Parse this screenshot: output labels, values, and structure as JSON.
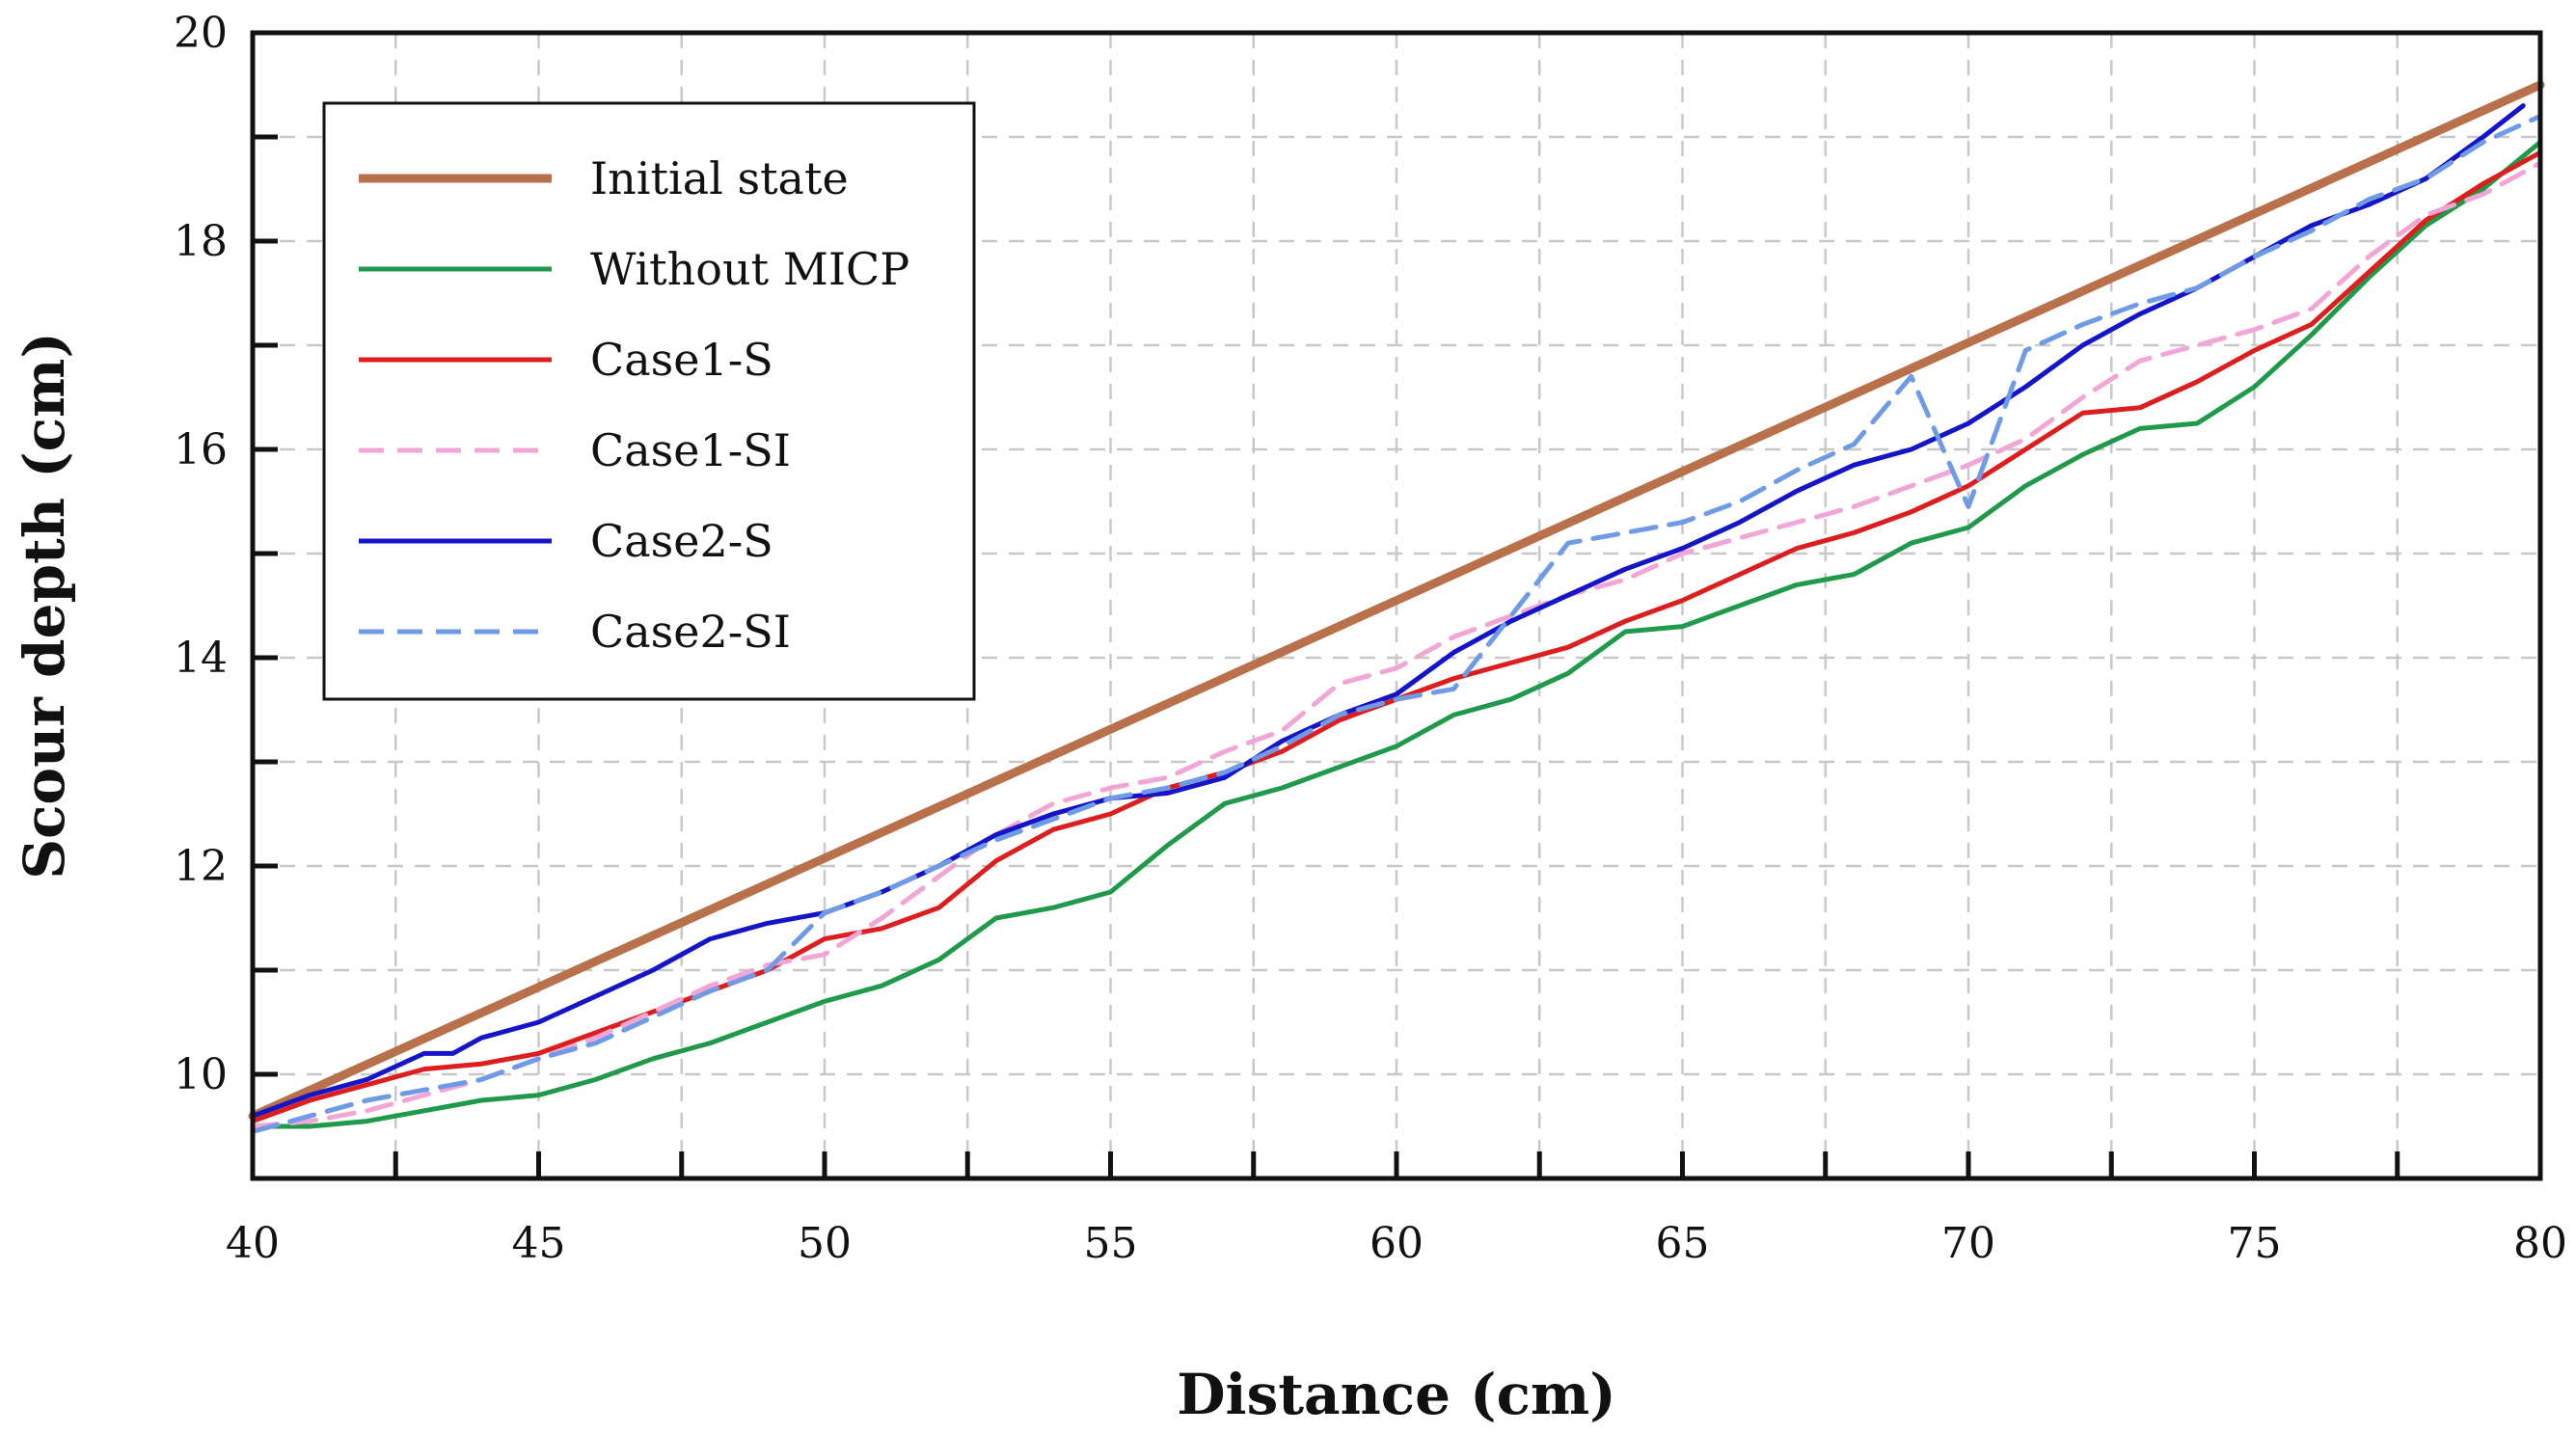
{
  "chart_data": {
    "type": "line",
    "xlabel": "Distance (cm)",
    "ylabel": "Scour depth (cm)",
    "xlim": [
      40,
      80
    ],
    "ylim": [
      9,
      20
    ],
    "xticks": [
      40,
      45,
      50,
      55,
      60,
      65,
      70,
      75,
      80
    ],
    "yticks": [
      10,
      12,
      14,
      16,
      18,
      20
    ],
    "grid": true,
    "legend_position": "top-left",
    "series": [
      {
        "name": "Initial state",
        "color": "#b8714a",
        "style": "solid",
        "x": [
          40,
          80
        ],
        "y": [
          9.6,
          19.5
        ]
      },
      {
        "name": "Without MICP",
        "color": "#1f9a4a",
        "style": "solid",
        "x": [
          40,
          41,
          42,
          43,
          44,
          45,
          46,
          47,
          48,
          49,
          50,
          51,
          52,
          53,
          54,
          55,
          56,
          57,
          58,
          59,
          60,
          61,
          62,
          63,
          64,
          65,
          66,
          67,
          68,
          69,
          70,
          71,
          72,
          73,
          74,
          75,
          76,
          77,
          78,
          79,
          80
        ],
        "y": [
          9.5,
          9.5,
          9.55,
          9.65,
          9.75,
          9.8,
          9.95,
          10.15,
          10.3,
          10.5,
          10.7,
          10.85,
          11.1,
          11.5,
          11.6,
          11.75,
          12.2,
          12.6,
          12.75,
          12.95,
          13.15,
          13.45,
          13.6,
          13.85,
          14.25,
          14.3,
          14.5,
          14.7,
          14.8,
          15.1,
          15.25,
          15.65,
          15.95,
          16.2,
          16.25,
          16.6,
          17.1,
          17.65,
          18.15,
          18.5,
          18.95
        ]
      },
      {
        "name": "Case1-S",
        "color": "#dc1e1e",
        "style": "solid",
        "x": [
          40,
          41,
          42,
          43,
          44,
          45,
          46,
          47,
          48,
          49,
          50,
          51,
          52,
          53,
          54,
          55,
          56,
          57,
          58,
          59,
          60,
          61,
          62,
          63,
          64,
          65,
          66,
          67,
          68,
          69,
          70,
          71,
          72,
          73,
          74,
          75,
          76,
          77,
          78,
          79,
          80
        ],
        "y": [
          9.55,
          9.75,
          9.9,
          10.05,
          10.1,
          10.2,
          10.4,
          10.6,
          10.8,
          11.0,
          11.3,
          11.4,
          11.6,
          12.05,
          12.35,
          12.5,
          12.75,
          12.9,
          13.1,
          13.4,
          13.6,
          13.8,
          13.95,
          14.1,
          14.35,
          14.55,
          14.8,
          15.05,
          15.2,
          15.4,
          15.65,
          16.0,
          16.35,
          16.4,
          16.65,
          16.95,
          17.2,
          17.7,
          18.2,
          18.55,
          18.85
        ]
      },
      {
        "name": "Case1-SI",
        "color": "#f2a6d6",
        "style": "dashed",
        "x": [
          40,
          41,
          42,
          43,
          44,
          45,
          46,
          47,
          48,
          49,
          50,
          51,
          52,
          53,
          54,
          55,
          56,
          57,
          58,
          59,
          60,
          61,
          62,
          63,
          64,
          65,
          66,
          67,
          68,
          69,
          70,
          71,
          72,
          73,
          74,
          75,
          76,
          77,
          78,
          79,
          80
        ],
        "y": [
          9.5,
          9.55,
          9.65,
          9.8,
          9.95,
          10.15,
          10.35,
          10.6,
          10.85,
          11.05,
          11.15,
          11.5,
          11.9,
          12.3,
          12.6,
          12.75,
          12.85,
          13.1,
          13.3,
          13.75,
          13.9,
          14.2,
          14.4,
          14.6,
          14.75,
          15.0,
          15.15,
          15.3,
          15.45,
          15.65,
          15.85,
          16.1,
          16.5,
          16.85,
          17.0,
          17.15,
          17.35,
          17.85,
          18.25,
          18.45,
          18.75
        ]
      },
      {
        "name": "Case2-S",
        "color": "#1414c8",
        "style": "solid",
        "x": [
          40,
          41,
          42,
          43,
          43.5,
          44,
          45,
          46,
          47,
          48,
          49,
          50,
          51,
          52,
          53,
          54,
          55,
          56,
          57,
          58,
          59,
          60,
          61,
          62,
          63,
          64,
          65,
          66,
          67,
          68,
          69,
          70,
          71,
          72,
          73,
          74,
          75,
          76,
          77,
          78,
          79,
          79.7
        ],
        "y": [
          9.6,
          9.8,
          9.95,
          10.2,
          10.2,
          10.35,
          10.5,
          10.75,
          11.0,
          11.3,
          11.45,
          11.55,
          11.75,
          12.0,
          12.3,
          12.5,
          12.65,
          12.7,
          12.85,
          13.2,
          13.45,
          13.65,
          14.05,
          14.35,
          14.6,
          14.85,
          15.05,
          15.3,
          15.6,
          15.85,
          16.0,
          16.25,
          16.6,
          17.0,
          17.3,
          17.55,
          17.85,
          18.15,
          18.35,
          18.6,
          19.0,
          19.3
        ]
      },
      {
        "name": "Case2-SI",
        "color": "#6f9be6",
        "style": "dashed",
        "x": [
          40,
          41,
          42,
          43,
          44,
          45,
          46,
          47,
          48,
          49,
          50,
          51,
          52,
          53,
          54,
          55,
          56,
          57,
          58,
          59,
          60,
          61,
          62,
          63,
          64,
          65,
          66,
          67,
          68,
          69,
          70,
          71,
          72,
          73,
          74,
          75,
          76,
          77,
          78,
          79,
          80
        ],
        "y": [
          9.45,
          9.6,
          9.75,
          9.85,
          9.95,
          10.15,
          10.3,
          10.55,
          10.8,
          11.0,
          11.55,
          11.75,
          12.0,
          12.25,
          12.45,
          12.65,
          12.75,
          12.9,
          13.15,
          13.45,
          13.6,
          13.7,
          14.4,
          15.1,
          15.2,
          15.3,
          15.5,
          15.8,
          16.05,
          16.7,
          15.45,
          16.95,
          17.2,
          17.4,
          17.55,
          17.85,
          18.1,
          18.4,
          18.6,
          18.95,
          19.2
        ]
      }
    ]
  }
}
